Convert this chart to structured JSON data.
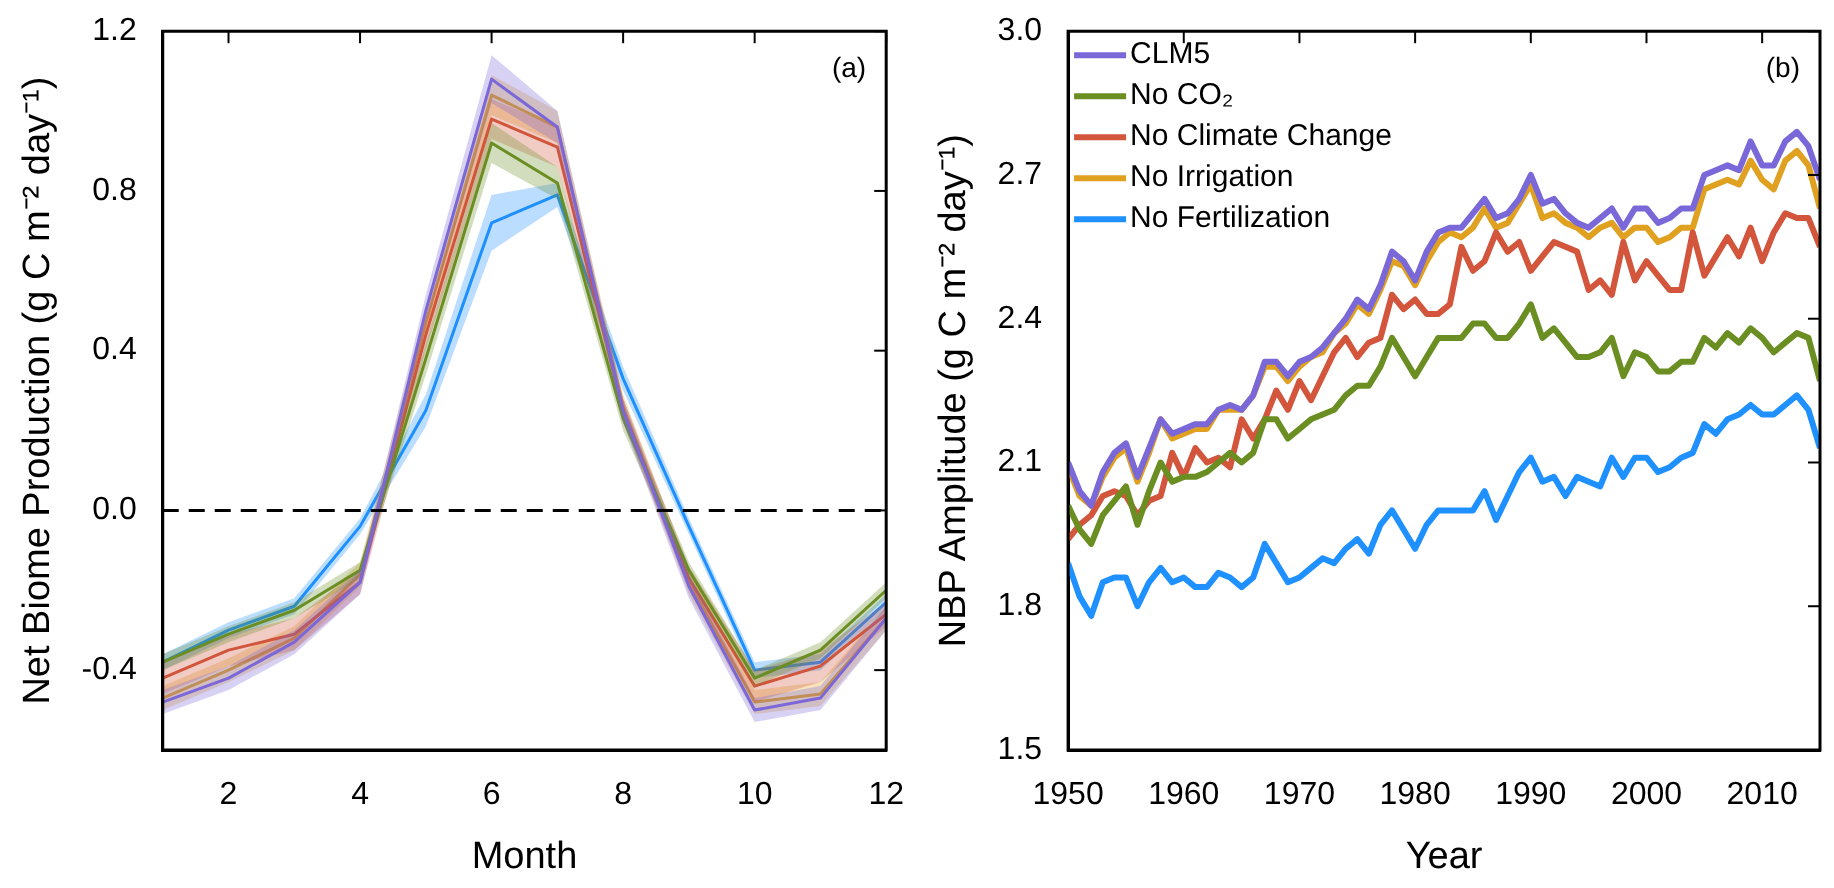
{
  "chart_data": [
    {
      "type": "line",
      "xlabel": "Month",
      "ylabel": "Net Biome Production (g C m⁻² day⁻¹)",
      "annotations": [
        "(a)"
      ],
      "x": [
        1,
        2,
        3,
        4,
        5,
        6,
        7,
        8,
        9,
        10,
        11,
        12
      ],
      "xlim": [
        1,
        12
      ],
      "xticks": [
        2,
        4,
        6,
        8,
        10,
        12
      ],
      "ylim": [
        -0.6,
        1.2
      ],
      "yticks": [
        -0.4,
        {
          "value": 0,
          "label": "0.0"
        },
        0.4,
        0.8,
        1.2
      ],
      "grid": false,
      "legend": false,
      "line_style": "solid",
      "marker": "none",
      "ref_lines": [
        {
          "axis": "y",
          "value": 0,
          "line_style": "dashed",
          "color": "#000000"
        }
      ],
      "series": [
        {
          "color": "#7b68d8",
          "values": [
            -0.48,
            -0.42,
            -0.33,
            -0.18,
            0.5,
            1.08,
            0.96,
            0.25,
            -0.19,
            -0.5,
            -0.47,
            -0.27
          ],
          "lower": [
            -0.51,
            -0.45,
            -0.36,
            -0.21,
            0.46,
            1.02,
            0.92,
            0.22,
            -0.22,
            -0.53,
            -0.5,
            -0.3
          ],
          "upper": [
            -0.45,
            -0.39,
            -0.3,
            -0.15,
            0.54,
            1.14,
            1.0,
            0.28,
            -0.16,
            -0.47,
            -0.44,
            -0.24
          ]
        },
        {
          "color": "#6b8e23",
          "values": [
            -0.38,
            -0.31,
            -0.25,
            -0.15,
            0.38,
            0.92,
            0.82,
            0.23,
            -0.15,
            -0.42,
            -0.35,
            -0.2
          ],
          "lower": [
            -0.4,
            -0.33,
            -0.27,
            -0.17,
            0.34,
            0.87,
            0.78,
            0.2,
            -0.17,
            -0.44,
            -0.37,
            -0.22
          ],
          "upper": [
            -0.36,
            -0.29,
            -0.23,
            -0.13,
            0.42,
            0.97,
            0.86,
            0.26,
            -0.13,
            -0.4,
            -0.33,
            -0.18
          ]
        },
        {
          "color": "#d2553c",
          "values": [
            -0.42,
            -0.35,
            -0.31,
            -0.18,
            0.44,
            0.98,
            0.91,
            0.25,
            -0.17,
            -0.44,
            -0.39,
            -0.26
          ],
          "lower": [
            -0.46,
            -0.39,
            -0.35,
            -0.21,
            0.4,
            0.93,
            0.86,
            0.22,
            -0.2,
            -0.48,
            -0.43,
            -0.29
          ],
          "upper": [
            -0.38,
            -0.31,
            -0.27,
            -0.15,
            0.48,
            1.03,
            0.96,
            0.28,
            -0.14,
            -0.4,
            -0.35,
            -0.23
          ]
        },
        {
          "color": "#e0a020",
          "values": [
            -0.47,
            -0.4,
            -0.32,
            -0.16,
            0.47,
            1.04,
            0.96,
            0.26,
            -0.18,
            -0.48,
            -0.46,
            -0.27
          ],
          "lower": [
            -0.5,
            -0.43,
            -0.35,
            -0.19,
            0.43,
            0.99,
            0.92,
            0.23,
            -0.21,
            -0.51,
            -0.49,
            -0.3
          ],
          "upper": [
            -0.44,
            -0.37,
            -0.29,
            -0.13,
            0.51,
            1.09,
            1.0,
            0.29,
            -0.15,
            -0.45,
            -0.43,
            -0.24
          ]
        },
        {
          "color": "#1e90ff",
          "values": [
            -0.38,
            -0.3,
            -0.24,
            -0.04,
            0.25,
            0.72,
            0.79,
            0.33,
            -0.04,
            -0.4,
            -0.38,
            -0.23
          ],
          "lower": [
            -0.4,
            -0.32,
            -0.26,
            -0.06,
            0.21,
            0.65,
            0.76,
            0.3,
            -0.06,
            -0.42,
            -0.4,
            -0.25
          ],
          "upper": [
            -0.36,
            -0.28,
            -0.22,
            -0.02,
            0.29,
            0.79,
            0.82,
            0.36,
            -0.02,
            -0.38,
            -0.36,
            -0.21
          ]
        }
      ]
    },
    {
      "type": "line",
      "xlabel": "Year",
      "ylabel": "NBP Amplitude (g C m⁻² day⁻¹)",
      "annotations": [
        "(b)"
      ],
      "x": [
        1950,
        1951,
        1952,
        1953,
        1954,
        1955,
        1956,
        1957,
        1958,
        1959,
        1960,
        1961,
        1962,
        1963,
        1964,
        1965,
        1966,
        1967,
        1968,
        1969,
        1970,
        1971,
        1972,
        1973,
        1974,
        1975,
        1976,
        1977,
        1978,
        1979,
        1980,
        1981,
        1982,
        1983,
        1984,
        1985,
        1986,
        1987,
        1988,
        1989,
        1990,
        1991,
        1992,
        1993,
        1994,
        1995,
        1996,
        1997,
        1998,
        1999,
        2000,
        2001,
        2002,
        2003,
        2004,
        2005,
        2006,
        2007,
        2008,
        2009,
        2010,
        2011,
        2012,
        2013,
        2014,
        2015
      ],
      "xlim": [
        1950,
        2015
      ],
      "xticks": [
        1950,
        1960,
        1970,
        1980,
        1990,
        2000,
        2010
      ],
      "ylim": [
        1.5,
        3.0
      ],
      "yticks": [
        1.5,
        1.8,
        2.1,
        2.4,
        2.7,
        {
          "value": 3,
          "label": "3.0"
        }
      ],
      "grid": false,
      "legend": "top left",
      "line_style": "solid",
      "marker": "none",
      "series": [
        {
          "name": "CLM5",
          "color": "#7b68d8",
          "values": [
            2.1,
            2.04,
            2.01,
            2.08,
            2.12,
            2.14,
            2.07,
            2.13,
            2.19,
            2.16,
            2.17,
            2.18,
            2.18,
            2.21,
            2.22,
            2.21,
            2.24,
            2.31,
            2.31,
            2.28,
            2.31,
            2.32,
            2.34,
            2.37,
            2.4,
            2.44,
            2.42,
            2.47,
            2.54,
            2.52,
            2.48,
            2.54,
            2.58,
            2.59,
            2.59,
            2.62,
            2.65,
            2.61,
            2.62,
            2.65,
            2.7,
            2.64,
            2.65,
            2.62,
            2.6,
            2.59,
            2.61,
            2.63,
            2.59,
            2.63,
            2.63,
            2.6,
            2.61,
            2.63,
            2.63,
            2.7,
            2.71,
            2.72,
            2.71,
            2.77,
            2.72,
            2.72,
            2.77,
            2.79,
            2.76,
            2.69
          ]
        },
        {
          "name": "No CO₂",
          "color": "#6b8e23",
          "values": [
            2.01,
            1.96,
            1.93,
            1.99,
            2.02,
            2.05,
            1.97,
            2.04,
            2.1,
            2.06,
            2.07,
            2.07,
            2.08,
            2.1,
            2.12,
            2.1,
            2.12,
            2.19,
            2.19,
            2.15,
            2.17,
            2.19,
            2.2,
            2.21,
            2.24,
            2.26,
            2.26,
            2.3,
            2.36,
            2.32,
            2.28,
            2.32,
            2.36,
            2.36,
            2.36,
            2.39,
            2.39,
            2.36,
            2.36,
            2.39,
            2.43,
            2.36,
            2.38,
            2.35,
            2.32,
            2.32,
            2.33,
            2.36,
            2.28,
            2.33,
            2.32,
            2.29,
            2.29,
            2.31,
            2.31,
            2.36,
            2.34,
            2.37,
            2.35,
            2.38,
            2.36,
            2.33,
            2.35,
            2.37,
            2.36,
            2.27
          ]
        },
        {
          "name": "No Climate Change",
          "color": "#d2553c",
          "values": [
            1.94,
            1.97,
            1.99,
            2.03,
            2.04,
            2.03,
            1.99,
            2.02,
            2.03,
            2.12,
            2.07,
            2.13,
            2.1,
            2.11,
            2.09,
            2.19,
            2.15,
            2.19,
            2.25,
            2.21,
            2.27,
            2.23,
            2.28,
            2.33,
            2.36,
            2.32,
            2.35,
            2.36,
            2.45,
            2.42,
            2.44,
            2.41,
            2.41,
            2.43,
            2.55,
            2.5,
            2.52,
            2.58,
            2.54,
            2.56,
            2.5,
            2.53,
            2.56,
            2.55,
            2.54,
            2.46,
            2.48,
            2.45,
            2.56,
            2.48,
            2.52,
            2.49,
            2.46,
            2.46,
            2.58,
            2.49,
            2.53,
            2.57,
            2.53,
            2.59,
            2.52,
            2.58,
            2.62,
            2.61,
            2.61,
            2.55
          ]
        },
        {
          "name": "No Irrigation",
          "color": "#e0a020",
          "values": [
            2.09,
            2.03,
            2.01,
            2.07,
            2.11,
            2.13,
            2.06,
            2.12,
            2.19,
            2.15,
            2.16,
            2.17,
            2.17,
            2.21,
            2.21,
            2.21,
            2.24,
            2.3,
            2.3,
            2.27,
            2.3,
            2.32,
            2.33,
            2.37,
            2.39,
            2.43,
            2.41,
            2.46,
            2.52,
            2.51,
            2.47,
            2.52,
            2.56,
            2.58,
            2.57,
            2.59,
            2.63,
            2.59,
            2.6,
            2.64,
            2.68,
            2.61,
            2.62,
            2.6,
            2.59,
            2.57,
            2.59,
            2.6,
            2.57,
            2.59,
            2.59,
            2.56,
            2.57,
            2.59,
            2.59,
            2.67,
            2.68,
            2.69,
            2.68,
            2.73,
            2.69,
            2.67,
            2.73,
            2.75,
            2.72,
            2.63
          ]
        },
        {
          "name": "No Fertilization",
          "color": "#1e90ff",
          "values": [
            1.89,
            1.82,
            1.78,
            1.85,
            1.86,
            1.86,
            1.8,
            1.85,
            1.88,
            1.85,
            1.86,
            1.84,
            1.84,
            1.87,
            1.86,
            1.84,
            1.86,
            1.93,
            1.89,
            1.85,
            1.86,
            1.88,
            1.9,
            1.89,
            1.92,
            1.94,
            1.91,
            1.97,
            2.0,
            1.96,
            1.92,
            1.97,
            2.0,
            2.0,
            2.0,
            2.0,
            2.04,
            1.98,
            2.03,
            2.08,
            2.11,
            2.06,
            2.07,
            2.03,
            2.07,
            2.06,
            2.05,
            2.11,
            2.07,
            2.11,
            2.11,
            2.08,
            2.09,
            2.11,
            2.12,
            2.18,
            2.16,
            2.19,
            2.2,
            2.22,
            2.2,
            2.2,
            2.22,
            2.24,
            2.21,
            2.13
          ]
        }
      ]
    }
  ]
}
